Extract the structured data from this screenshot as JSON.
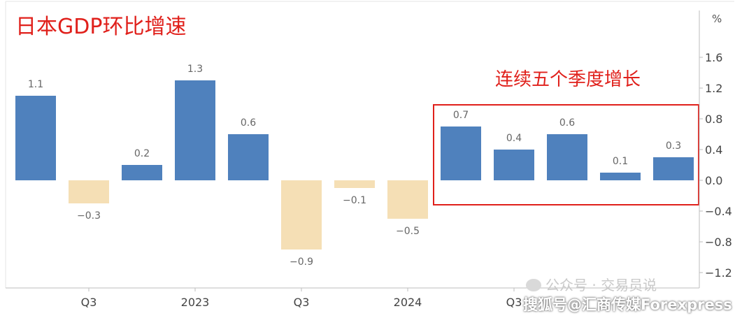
{
  "chart_data": {
    "type": "bar",
    "title": "日本GDP环比增速",
    "unit": "%",
    "values": [
      1.1,
      -0.3,
      0.2,
      1.3,
      0.6,
      -0.9,
      -0.1,
      -0.5,
      0.7,
      0.4,
      0.6,
      0.1,
      0.3
    ],
    "value_labels": [
      "1.1",
      "−0.3",
      "0.2",
      "1.3",
      "0.6",
      "−0.9",
      "−0.1",
      "−0.5",
      "0.7",
      "0.4",
      "0.6",
      "0.1",
      "0.3"
    ],
    "x_tick_labels": [
      {
        "label": "Q3",
        "bar_index": 1
      },
      {
        "label": "2023",
        "bar_index": 3
      },
      {
        "label": "Q3",
        "bar_index": 5
      },
      {
        "label": "2024",
        "bar_index": 7
      },
      {
        "label": "Q3",
        "bar_index": 9
      }
    ],
    "y_ticks": [
      1.6,
      1.2,
      0.8,
      0.4,
      0.0,
      -0.4,
      -0.8,
      -1.2
    ],
    "y_tick_labels": [
      "1.6",
      "1.2",
      "0.8",
      "0.4",
      "0.0",
      "−0.4",
      "−0.8",
      "−1.2"
    ],
    "ylim": [
      -1.45,
      1.9
    ],
    "grid": false,
    "highlight": {
      "label": "连续五个季度增长",
      "first_bar_index": 8,
      "last_bar_index": 12
    },
    "colors": {
      "positive": "#4f81bd",
      "negative": "#f5dfb5",
      "title": "#e0201b",
      "highlight_box": "#e0201b"
    }
  },
  "watermarks": {
    "line1": "公众号 · 交易员说",
    "line2": "搜狐号@汇商传媒Forexpress"
  }
}
